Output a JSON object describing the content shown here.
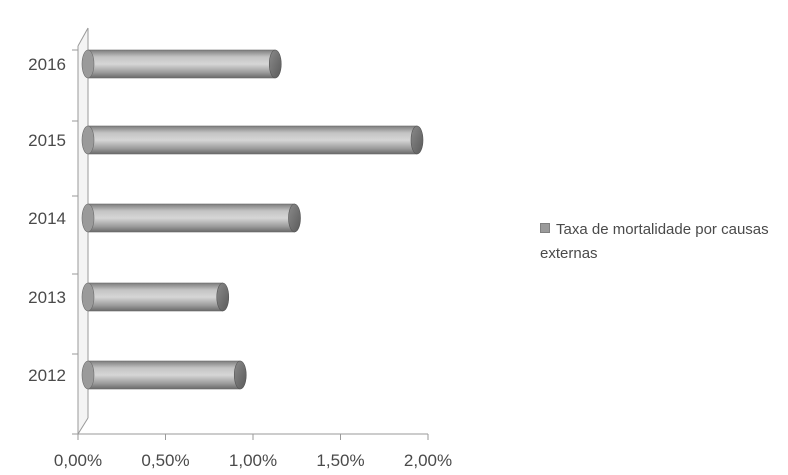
{
  "chart_data": {
    "type": "bar",
    "orientation": "horizontal",
    "style": "3d-cylinder",
    "categories": [
      "2012",
      "2013",
      "2014",
      "2015",
      "2016"
    ],
    "series": [
      {
        "name": "Taxa de mortalidade por causas externas",
        "values": [
          0.0087,
          0.0077,
          0.0118,
          0.0188,
          0.0107
        ]
      }
    ],
    "xlim": [
      0,
      0.02
    ],
    "x_ticks": [
      0,
      0.005,
      0.01,
      0.015,
      0.02
    ],
    "x_tick_labels": [
      "0,00%",
      "0,50%",
      "1,00%",
      "1,50%",
      "2,00%"
    ],
    "legend_position": "right",
    "grid": false,
    "colors": {
      "bar": "#a6a6a6",
      "bar_dark": "#6e6e6e",
      "axis": "#9a9a9a",
      "text": "#4a4a4a"
    }
  }
}
